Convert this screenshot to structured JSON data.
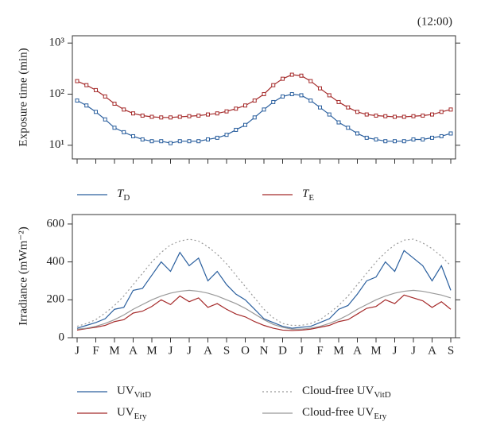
{
  "chart_data": [
    {
      "type": "line",
      "annotation": "(12:00)",
      "ylabel": "Exposure time (min)",
      "log_y": true,
      "ylim": [
        5.4,
        1390
      ],
      "yticks": [
        {
          "value": 10,
          "label": "10¹"
        },
        {
          "value": 100,
          "label": "10²"
        },
        {
          "value": 1000,
          "label": "10³"
        }
      ],
      "xlim": [
        0,
        20
      ],
      "xticks": [
        0,
        1,
        2,
        3,
        4,
        5,
        6,
        7,
        8,
        9,
        10,
        11,
        12,
        13,
        14,
        15,
        16,
        17,
        18,
        19,
        20
      ],
      "marker": "square",
      "x": [
        0,
        0.5,
        1,
        1.5,
        2,
        2.5,
        3,
        3.5,
        4,
        4.5,
        5,
        5.5,
        6,
        6.5,
        7,
        7.5,
        8,
        8.5,
        9,
        9.5,
        10,
        10.5,
        11,
        11.5,
        12,
        12.5,
        13,
        13.5,
        14,
        14.5,
        15,
        15.5,
        16,
        16.5,
        17,
        17.5,
        18,
        18.5,
        19,
        19.5,
        20
      ],
      "series": [
        {
          "name": "T",
          "sub": "D",
          "color": "#2a5f9e",
          "values": [
            75,
            60,
            45,
            32,
            22,
            18,
            15,
            13,
            12,
            12,
            11,
            12,
            12,
            12,
            13,
            14,
            16,
            20,
            25,
            35,
            50,
            70,
            90,
            100,
            95,
            75,
            55,
            40,
            28,
            22,
            17,
            14,
            13,
            12,
            12,
            12,
            13,
            13,
            14,
            15,
            17
          ]
        },
        {
          "name": "T",
          "sub": "E",
          "color": "#a52a2a",
          "values": [
            180,
            150,
            120,
            90,
            65,
            50,
            42,
            38,
            36,
            35,
            35,
            36,
            37,
            38,
            40,
            42,
            46,
            52,
            60,
            75,
            100,
            150,
            200,
            240,
            230,
            180,
            130,
            95,
            70,
            55,
            45,
            40,
            38,
            37,
            36,
            36,
            37,
            38,
            40,
            45,
            50
          ]
        }
      ]
    },
    {
      "type": "line",
      "ylabel": "Irradiance (mWm⁻²)",
      "log_y": false,
      "ylim": [
        0,
        650
      ],
      "yticks": [
        0,
        200,
        400,
        600
      ],
      "xlim": [
        0,
        20
      ],
      "xticks": [
        {
          "value": 0,
          "label": "J"
        },
        {
          "value": 1,
          "label": "F"
        },
        {
          "value": 2,
          "label": "M"
        },
        {
          "value": 3,
          "label": "A"
        },
        {
          "value": 4,
          "label": "M"
        },
        {
          "value": 5,
          "label": "J"
        },
        {
          "value": 6,
          "label": "J"
        },
        {
          "value": 7,
          "label": "A"
        },
        {
          "value": 8,
          "label": "S"
        },
        {
          "value": 9,
          "label": "O"
        },
        {
          "value": 10,
          "label": "N"
        },
        {
          "value": 11,
          "label": "D"
        },
        {
          "value": 12,
          "label": "J"
        },
        {
          "value": 13,
          "label": "F"
        },
        {
          "value": 14,
          "label": "M"
        },
        {
          "value": 15,
          "label": "A"
        },
        {
          "value": 16,
          "label": "M"
        },
        {
          "value": 17,
          "label": "J"
        },
        {
          "value": 18,
          "label": "J"
        },
        {
          "value": 19,
          "label": "A"
        },
        {
          "value": 20,
          "label": "S"
        }
      ],
      "x": [
        0,
        0.5,
        1,
        1.5,
        2,
        2.5,
        3,
        3.5,
        4,
        4.5,
        5,
        5.5,
        6,
        6.5,
        7,
        7.5,
        8,
        8.5,
        9,
        9.5,
        10,
        10.5,
        11,
        11.5,
        12,
        12.5,
        13,
        13.5,
        14,
        14.5,
        15,
        15.5,
        16,
        16.5,
        17,
        17.5,
        18,
        18.5,
        19,
        19.5,
        20
      ],
      "series": [
        {
          "name": "UV",
          "sub": "VitD",
          "color": "#2a5f9e",
          "dash": "solid",
          "values": [
            50,
            65,
            80,
            100,
            150,
            160,
            250,
            260,
            330,
            400,
            350,
            450,
            380,
            420,
            300,
            350,
            280,
            230,
            200,
            150,
            100,
            80,
            60,
            50,
            55,
            60,
            80,
            100,
            150,
            170,
            230,
            300,
            320,
            400,
            350,
            460,
            420,
            380,
            300,
            380,
            250
          ]
        },
        {
          "name": "UV",
          "sub": "Ery",
          "color": "#a52a2a",
          "dash": "solid",
          "values": [
            40,
            48,
            55,
            65,
            85,
            95,
            130,
            140,
            165,
            200,
            175,
            220,
            190,
            210,
            160,
            180,
            150,
            125,
            110,
            85,
            65,
            50,
            40,
            38,
            40,
            45,
            55,
            65,
            85,
            95,
            125,
            155,
            165,
            200,
            180,
            225,
            210,
            195,
            160,
            190,
            150
          ]
        },
        {
          "name": "Cloud-free UV",
          "sub": "VitD",
          "color": "#999999",
          "dash": "dotted",
          "values": [
            60,
            75,
            95,
            130,
            170,
            220,
            280,
            340,
            400,
            450,
            490,
            510,
            520,
            510,
            480,
            440,
            390,
            330,
            270,
            210,
            150,
            105,
            75,
            65,
            65,
            75,
            95,
            130,
            170,
            220,
            280,
            340,
            400,
            450,
            490,
            515,
            520,
            500,
            470,
            430,
            380
          ]
        },
        {
          "name": "Cloud-free UV",
          "sub": "Ery",
          "color": "#999999",
          "dash": "solid",
          "values": [
            45,
            50,
            60,
            75,
            95,
            120,
            150,
            175,
            200,
            220,
            235,
            245,
            250,
            245,
            235,
            220,
            200,
            180,
            155,
            125,
            95,
            70,
            55,
            45,
            45,
            50,
            60,
            75,
            95,
            120,
            150,
            175,
            200,
            220,
            235,
            245,
            250,
            245,
            235,
            225,
            210
          ]
        }
      ]
    }
  ]
}
